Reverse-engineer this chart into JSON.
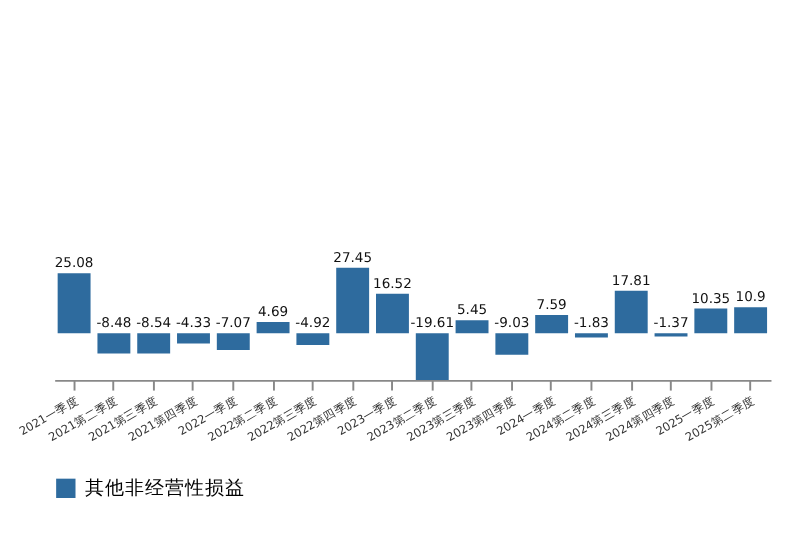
{
  "chart_data": {
    "type": "bar",
    "categories": [
      "2021一季度",
      "2021第二季度",
      "2021第三季度",
      "2021第四季度",
      "2022一季度",
      "2022第二季度",
      "2022第三季度",
      "2022第四季度",
      "2023一季度",
      "2023第二季度",
      "2023第三季度",
      "2023第四季度",
      "2024一季度",
      "2024第二季度",
      "2024第三季度",
      "2024第四季度",
      "2025一季度",
      "2025第二季度"
    ],
    "series": [
      {
        "name": "其他非经营性损益",
        "color": "#2e6b9e",
        "values": [
          25.08,
          -8.48,
          -8.54,
          -4.33,
          -7.07,
          4.69,
          -4.92,
          27.45,
          16.52,
          -19.61,
          5.45,
          -9.03,
          7.59,
          -1.83,
          17.81,
          -1.37,
          10.35,
          10.9
        ]
      }
    ],
    "tick_labels": "x",
    "data_labels": true,
    "legend": "bottom"
  }
}
